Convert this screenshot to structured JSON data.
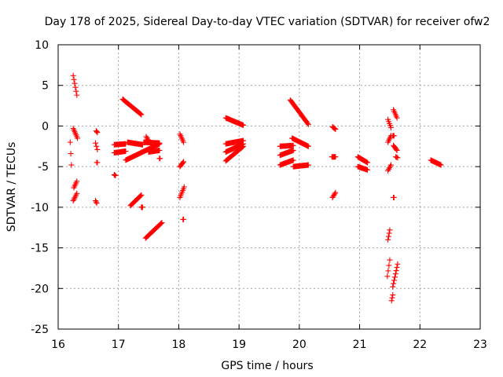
{
  "chart_data": {
    "type": "scatter",
    "title": "Day 178 of 2025, Sidereal Day-to-day VTEC variation (SDTVAR) for receiver ofw2",
    "xlabel": "GPS time / hours",
    "ylabel": "SDTVAR / TECUs",
    "xlim": [
      16,
      23
    ],
    "ylim": [
      -25,
      10
    ],
    "xticks": [
      "16",
      "17",
      "18",
      "19",
      "20",
      "21",
      "22",
      "23"
    ],
    "yticks": [
      "10",
      "5",
      "0",
      "-5",
      "-10",
      "-15",
      "-20",
      "-25"
    ],
    "grid": true,
    "marker": "+",
    "color": "#ff0000",
    "segments": [
      {
        "x": [
          16.25,
          16.31
        ],
        "y": [
          6.2,
          3.8
        ]
      },
      {
        "x": [
          16.2,
          16.22
        ],
        "y": [
          -2.0,
          -4.8
        ]
      },
      {
        "x": [
          16.25,
          16.32
        ],
        "y": [
          -0.3,
          -1.5
        ]
      },
      {
        "x": [
          16.26,
          16.31
        ],
        "y": [
          -7.6,
          -6.8
        ]
      },
      {
        "x": [
          16.25,
          16.31
        ],
        "y": [
          -9.2,
          -8.3
        ]
      },
      {
        "x": [
          16.63,
          16.65
        ],
        "y": [
          -0.6,
          -0.8
        ]
      },
      {
        "x": [
          16.62,
          16.65
        ],
        "y": [
          -2.1,
          -2.9
        ]
      },
      {
        "x": [
          16.62,
          16.64
        ],
        "y": [
          -9.2,
          -9.5
        ]
      },
      {
        "x": [
          16.64,
          16.65
        ],
        "y": [
          -4.5,
          -4.5
        ]
      },
      {
        "x": [
          16.93,
          16.95
        ],
        "y": [
          -6.0,
          -6.1
        ]
      },
      {
        "x": [
          17.07,
          17.38
        ],
        "y": [
          3.3,
          1.4
        ]
      },
      {
        "x": [
          16.93,
          17.12
        ],
        "y": [
          -2.3,
          -2.2
        ]
      },
      {
        "x": [
          16.93,
          17.12
        ],
        "y": [
          -3.3,
          -3.1
        ]
      },
      {
        "x": [
          17.12,
          17.68
        ],
        "y": [
          -4.2,
          -2.2
        ]
      },
      {
        "x": [
          17.15,
          17.4
        ],
        "y": [
          -2.0,
          -2.3
        ]
      },
      {
        "x": [
          17.42,
          17.68
        ],
        "y": [
          -2.0,
          -2.1
        ]
      },
      {
        "x": [
          17.5,
          17.68
        ],
        "y": [
          -3.2,
          -3.0
        ]
      },
      {
        "x": [
          17.2,
          17.38
        ],
        "y": [
          -9.8,
          -8.5
        ]
      },
      {
        "x": [
          17.38,
          17.4
        ],
        "y": [
          -10.0,
          -10.0
        ]
      },
      {
        "x": [
          17.45,
          17.72
        ],
        "y": [
          -13.8,
          -11.9
        ]
      },
      {
        "x": [
          17.46,
          17.5
        ],
        "y": [
          -1.3,
          -1.8
        ]
      },
      {
        "x": [
          17.68,
          17.69
        ],
        "y": [
          -4.0,
          -4.0
        ]
      },
      {
        "x": [
          18.02,
          18.08
        ],
        "y": [
          -1.0,
          -2.0
        ]
      },
      {
        "x": [
          18.02,
          18.08
        ],
        "y": [
          -5.0,
          -4.4
        ]
      },
      {
        "x": [
          18.02,
          18.09
        ],
        "y": [
          -8.8,
          -7.5
        ]
      },
      {
        "x": [
          18.07,
          18.08
        ],
        "y": [
          -11.5,
          -11.5
        ]
      },
      {
        "x": [
          18.78,
          19.07
        ],
        "y": [
          1.0,
          0.1
        ]
      },
      {
        "x": [
          18.78,
          19.07
        ],
        "y": [
          -2.2,
          -1.8
        ]
      },
      {
        "x": [
          18.78,
          19.07
        ],
        "y": [
          -3.2,
          -2.2
        ]
      },
      {
        "x": [
          18.78,
          19.07
        ],
        "y": [
          -4.3,
          -2.5
        ]
      },
      {
        "x": [
          19.85,
          20.15
        ],
        "y": [
          3.2,
          0.2
        ]
      },
      {
        "x": [
          19.68,
          19.9
        ],
        "y": [
          -2.5,
          -2.4
        ]
      },
      {
        "x": [
          19.68,
          19.9
        ],
        "y": [
          -3.6,
          -3.0
        ]
      },
      {
        "x": [
          19.68,
          19.9
        ],
        "y": [
          -4.8,
          -4.2
        ]
      },
      {
        "x": [
          19.88,
          20.15
        ],
        "y": [
          -1.5,
          -2.5
        ]
      },
      {
        "x": [
          19.9,
          20.15
        ],
        "y": [
          -5.0,
          -4.8
        ]
      },
      {
        "x": [
          20.55,
          20.6
        ],
        "y": [
          -0.1,
          -0.4
        ]
      },
      {
        "x": [
          20.54,
          20.6
        ],
        "y": [
          -3.8,
          -3.8
        ]
      },
      {
        "x": [
          20.55,
          20.6
        ],
        "y": [
          -8.8,
          -8.2
        ]
      },
      {
        "x": [
          20.97,
          21.13
        ],
        "y": [
          -3.8,
          -4.5
        ]
      },
      {
        "x": [
          20.97,
          21.13
        ],
        "y": [
          -5.0,
          -5.4
        ]
      },
      {
        "x": [
          21.47,
          21.52
        ],
        "y": [
          0.8,
          -0.2
        ]
      },
      {
        "x": [
          21.47,
          21.52
        ],
        "y": [
          -2.0,
          -1.2
        ]
      },
      {
        "x": [
          21.47,
          21.52
        ],
        "y": [
          -5.5,
          -4.8
        ]
      },
      {
        "x": [
          21.47,
          21.5
        ],
        "y": [
          -14.0,
          -12.8
        ]
      },
      {
        "x": [
          21.46,
          21.5
        ],
        "y": [
          -18.5,
          -16.5
        ]
      },
      {
        "x": [
          21.55,
          21.57
        ],
        "y": [
          -1.2,
          -1.2
        ]
      },
      {
        "x": [
          21.56,
          21.62
        ],
        "y": [
          -2.4,
          -3.0
        ]
      },
      {
        "x": [
          21.56,
          21.62
        ],
        "y": [
          2.0,
          1.0
        ]
      },
      {
        "x": [
          21.6,
          21.63
        ],
        "y": [
          -3.8,
          -3.9
        ]
      },
      {
        "x": [
          21.56,
          21.57
        ],
        "y": [
          -8.8,
          -8.8
        ]
      },
      {
        "x": [
          21.55,
          21.63
        ],
        "y": [
          -19.8,
          -17.0
        ]
      },
      {
        "x": [
          21.53,
          21.55
        ],
        "y": [
          -21.5,
          -20.8
        ]
      },
      {
        "x": [
          22.18,
          22.35
        ],
        "y": [
          -4.2,
          -4.8
        ]
      }
    ]
  }
}
